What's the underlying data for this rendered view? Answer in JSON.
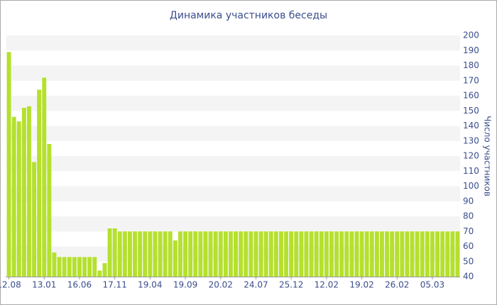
{
  "chart_data": {
    "type": "bar",
    "title": "Динамика участников беседы",
    "y_label": "Число участников",
    "categories": [
      "12.08",
      null,
      null,
      null,
      null,
      null,
      null,
      "13.01",
      null,
      null,
      null,
      null,
      null,
      null,
      "16.06",
      null,
      null,
      null,
      null,
      null,
      null,
      "17.11",
      null,
      null,
      null,
      null,
      null,
      null,
      "19.04",
      null,
      null,
      null,
      null,
      null,
      null,
      "19.09",
      null,
      null,
      null,
      null,
      null,
      null,
      "20.02",
      null,
      null,
      null,
      null,
      null,
      null,
      "24.07",
      null,
      null,
      null,
      null,
      null,
      null,
      "25.12",
      null,
      null,
      null,
      null,
      null,
      null,
      "12.02",
      null,
      null,
      null,
      null,
      null,
      null,
      "19.02",
      null,
      null,
      null,
      null,
      null,
      null,
      "26.02",
      null,
      null,
      null,
      null,
      null,
      null,
      "05.03",
      null,
      null,
      null,
      null,
      null
    ],
    "values": [
      189,
      146,
      143,
      152,
      153,
      116,
      164,
      172,
      128,
      56,
      53,
      53,
      53,
      53,
      53,
      53,
      53,
      53,
      44,
      49,
      72,
      72,
      70,
      70,
      70,
      70,
      70,
      70,
      70,
      70,
      70,
      70,
      70,
      64,
      70,
      70,
      70,
      70,
      70,
      70,
      70,
      70,
      70,
      70,
      70,
      70,
      70,
      70,
      70,
      70,
      70,
      70,
      70,
      70,
      70,
      70,
      70,
      70,
      70,
      70,
      70,
      70,
      70,
      70,
      70,
      70,
      70,
      70,
      70,
      70,
      70,
      70,
      70,
      70,
      70,
      70,
      70,
      70,
      70,
      70,
      70,
      70,
      70,
      70,
      70,
      70,
      70,
      70,
      70,
      70
    ],
    "color": "#b5e02f",
    "ylim": [
      40,
      200
    ],
    "yticks": [
      40,
      50,
      60,
      70,
      80,
      90,
      100,
      110,
      120,
      130,
      140,
      150,
      160,
      170,
      180,
      190,
      200
    ],
    "grid": "bands"
  }
}
